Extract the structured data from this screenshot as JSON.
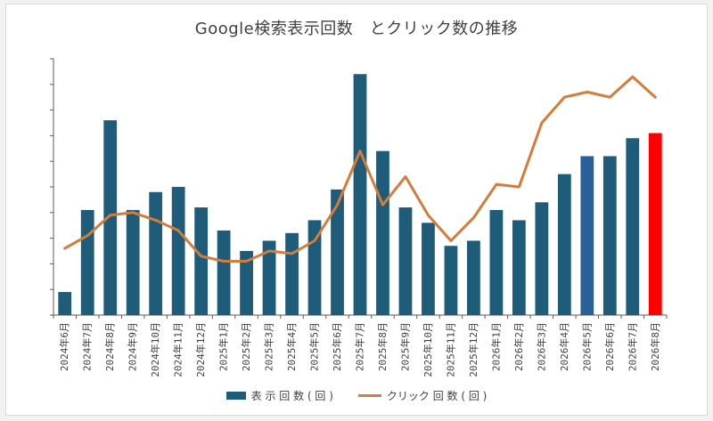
{
  "chart_data": {
    "type": "bar+line",
    "title": "Google検索表示回数　とクリック数の推移",
    "categories": [
      "2024年6月",
      "2024年7月",
      "2024年8月",
      "2024年9月",
      "2024年10月",
      "2024年11月",
      "2024年12月",
      "2025年1月",
      "2025年2月",
      "2025年3月",
      "2025年4月",
      "2025年5月",
      "2025年6月",
      "2025年7月",
      "2025年8月",
      "2025年9月",
      "2025年10月",
      "2025年11月",
      "2025年12月",
      "2026年1月",
      "2026年2月",
      "2026年3月",
      "2026年4月",
      "2026年5月",
      "2026年6月",
      "2026年7月",
      "2026年8月"
    ],
    "series": [
      {
        "name": "表 示 回 数 ( 回 )",
        "type": "bar",
        "color": "#1f5c7a",
        "highlight_colors": {
          "23": "#2a6099",
          "26": "#ff0000"
        },
        "values": [
          0.9,
          4.1,
          7.6,
          4.1,
          4.8,
          5.0,
          4.2,
          3.3,
          2.5,
          2.9,
          3.2,
          3.7,
          4.9,
          9.4,
          6.4,
          4.2,
          3.6,
          2.7,
          2.9,
          4.1,
          3.7,
          4.4,
          5.5,
          6.2,
          6.2,
          6.9,
          7.1
        ]
      },
      {
        "name": "クリック 回 数 ( 回 )",
        "type": "line",
        "color": "#d47c3a",
        "values": [
          2.6,
          3.1,
          3.9,
          4.0,
          3.7,
          3.3,
          2.3,
          2.1,
          2.1,
          2.5,
          2.4,
          2.9,
          4.3,
          6.4,
          4.3,
          5.4,
          3.9,
          2.9,
          3.8,
          5.1,
          5.0,
          7.5,
          8.5,
          8.7,
          8.5,
          9.3,
          8.5
        ]
      }
    ],
    "ylim": [
      0,
      10
    ],
    "grid": false,
    "legend": "bottom"
  }
}
